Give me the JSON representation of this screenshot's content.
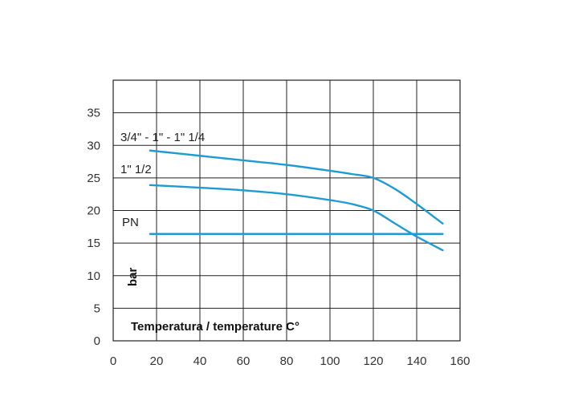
{
  "chart_data": {
    "type": "line",
    "xlabel": "Temperatura / temperature C°",
    "ylabel": "bar",
    "xlim": [
      0,
      160
    ],
    "ylim": [
      0,
      40
    ],
    "x_ticks": [
      0,
      20,
      40,
      60,
      80,
      100,
      120,
      140,
      160
    ],
    "y_ticks": [
      0,
      5,
      10,
      15,
      20,
      25,
      30,
      35
    ],
    "grid": true,
    "series_color": "#1f9bd3",
    "series": [
      {
        "name": "3/4\" - 1\" - 1\" 1/4",
        "x": [
          17,
          40,
          60,
          80,
          100,
          110,
          120,
          130,
          140,
          152
        ],
        "y": [
          29.2,
          28.4,
          27.7,
          27.0,
          26.1,
          25.6,
          25.0,
          23.3,
          21.0,
          18.0
        ]
      },
      {
        "name": "1\" 1/2",
        "x": [
          17,
          40,
          60,
          80,
          100,
          110,
          120,
          130,
          140,
          152
        ],
        "y": [
          23.9,
          23.5,
          23.1,
          22.5,
          21.6,
          21.0,
          20.0,
          18.0,
          16.0,
          13.9
        ]
      },
      {
        "name": "PN",
        "x": [
          17,
          152
        ],
        "y": [
          16.4,
          16.4
        ]
      }
    ]
  }
}
